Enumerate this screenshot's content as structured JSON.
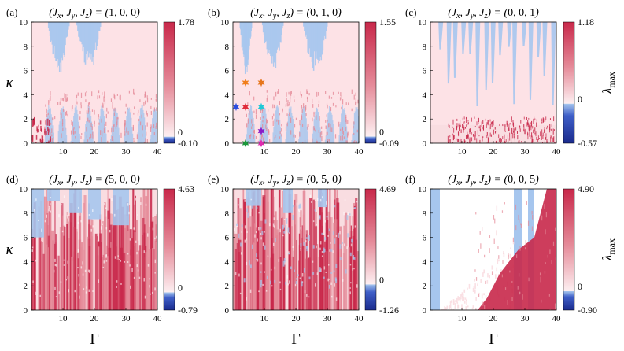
{
  "colors": {
    "chaotic": "#c8284a",
    "chaotic_mid": "#e58b99",
    "chaotic_light": "#f9dde1",
    "stable_blue": "#a6c6ee",
    "deep_blue": "#1a2a8c",
    "background_pink": "#fde2e6"
  },
  "figure": {
    "x_axis_label": "Γ",
    "y_axis_label": "κ",
    "colorbar_label_main": "λ",
    "colorbar_label_sub": "max"
  },
  "chart_data": [
    {
      "type": "heatmap",
      "panel": "(a)",
      "title": "(J_x, J_y, J_z) = (1, 0, 0)",
      "title_parts": {
        "pre": "(J",
        "x": "x",
        "sep1": ", J",
        "y": "y",
        "sep2": ", J",
        "z": "z",
        "mid": ") = (",
        "values": "1, 0, 0",
        "post": ")"
      },
      "xlabel": "Γ",
      "ylabel": "κ",
      "xlim": [
        0,
        40
      ],
      "ylim": [
        0,
        10
      ],
      "xticks": [
        10,
        20,
        30,
        40
      ],
      "yticks": [
        0,
        2,
        4,
        6,
        8,
        10
      ],
      "colorbar": {
        "label": "λmax",
        "min": -0.1,
        "max": 1.78,
        "zero": 0,
        "tick_labels": [
          "1.78",
          "0",
          "-0.10"
        ]
      }
    },
    {
      "type": "heatmap",
      "panel": "(b)",
      "title": "(J_x, J_y, J_z) = (0, 1, 0)",
      "title_parts": {
        "pre": "(J",
        "x": "x",
        "sep1": ", J",
        "y": "y",
        "sep2": ", J",
        "z": "z",
        "mid": ") = (",
        "values": "0, 1, 0",
        "post": ")"
      },
      "xlabel": "Γ",
      "ylabel": "κ",
      "xlim": [
        0,
        40
      ],
      "ylim": [
        0,
        10
      ],
      "xticks": [
        10,
        20,
        30,
        40
      ],
      "yticks": [
        0,
        2,
        4,
        6,
        8,
        10
      ],
      "colorbar": {
        "label": "λmax",
        "min": -0.09,
        "max": 1.55,
        "zero": 0,
        "tick_labels": [
          "1.55",
          "0",
          "-0.09"
        ]
      },
      "markers": [
        {
          "x": 1,
          "y": 3,
          "color": "#2b4ee0"
        },
        {
          "x": 4,
          "y": 5,
          "color": "#f07d1a"
        },
        {
          "x": 9,
          "y": 5,
          "color": "#e6751a"
        },
        {
          "x": 4,
          "y": 3,
          "color": "#e02b3a"
        },
        {
          "x": 9,
          "y": 3,
          "color": "#1ec8d6"
        },
        {
          "x": 9,
          "y": 1,
          "color": "#8a1bc8"
        },
        {
          "x": 4,
          "y": 0,
          "color": "#1a9a3a"
        },
        {
          "x": 9,
          "y": 0,
          "color": "#e02ab0"
        }
      ]
    },
    {
      "type": "heatmap",
      "panel": "(c)",
      "title": "(J_x, J_y, J_z) = (0, 0, 1)",
      "title_parts": {
        "pre": "(J",
        "x": "x",
        "sep1": ", J",
        "y": "y",
        "sep2": ", J",
        "z": "z",
        "mid": ") = (",
        "values": "0, 0, 1",
        "post": ")"
      },
      "xlabel": "Γ",
      "ylabel": "κ",
      "xlim": [
        0,
        40
      ],
      "ylim": [
        0,
        10
      ],
      "xticks": [
        10,
        20,
        30,
        40
      ],
      "yticks": [
        0,
        2,
        4,
        6,
        8,
        10
      ],
      "colorbar": {
        "label": "λmax",
        "min": -0.57,
        "max": 1.18,
        "zero": 0,
        "tick_labels": [
          "1.18",
          "0",
          "-0.57"
        ]
      }
    },
    {
      "type": "heatmap",
      "panel": "(d)",
      "title": "(J_x, J_y, J_z) = (5, 0, 0)",
      "title_parts": {
        "pre": "(J",
        "x": "x",
        "sep1": ", J",
        "y": "y",
        "sep2": ", J",
        "z": "z",
        "mid": ") = (",
        "values": "5, 0, 0",
        "post": ")"
      },
      "xlabel": "Γ",
      "ylabel": "κ",
      "xlim": [
        0,
        40
      ],
      "ylim": [
        0,
        10
      ],
      "xticks": [
        10,
        20,
        30,
        40
      ],
      "yticks": [
        0,
        2,
        4,
        6,
        8,
        10
      ],
      "colorbar": {
        "label": "λmax",
        "min": -0.79,
        "max": 4.63,
        "zero": 0,
        "tick_labels": [
          "4.63",
          "0",
          "-0.79"
        ]
      }
    },
    {
      "type": "heatmap",
      "panel": "(e)",
      "title": "(J_x, J_y, J_z) = (0, 5, 0)",
      "title_parts": {
        "pre": "(J",
        "x": "x",
        "sep1": ", J",
        "y": "y",
        "sep2": ", J",
        "z": "z",
        "mid": ") = (",
        "values": "0, 5, 0",
        "post": ")"
      },
      "xlabel": "Γ",
      "ylabel": "κ",
      "xlim": [
        0,
        40
      ],
      "ylim": [
        0,
        10
      ],
      "xticks": [
        10,
        20,
        30,
        40
      ],
      "yticks": [
        0,
        2,
        4,
        6,
        8,
        10
      ],
      "colorbar": {
        "label": "λmax",
        "min": -1.26,
        "max": 4.69,
        "zero": 0,
        "tick_labels": [
          "4.69",
          "0",
          "-1.26"
        ]
      }
    },
    {
      "type": "heatmap",
      "panel": "(f)",
      "title": "(J_x, J_y, J_z) = (0, 0, 5)",
      "title_parts": {
        "pre": "(J",
        "x": "x",
        "sep1": ", J",
        "y": "y",
        "sep2": ", J",
        "z": "z",
        "mid": ") = (",
        "values": "0, 0, 5",
        "post": ")"
      },
      "xlabel": "Γ",
      "ylabel": "κ",
      "xlim": [
        0,
        40
      ],
      "ylim": [
        0,
        10
      ],
      "xticks": [
        10,
        20,
        30,
        40
      ],
      "yticks": [
        0,
        2,
        4,
        6,
        8,
        10
      ],
      "colorbar": {
        "label": "λmax",
        "min": -0.9,
        "max": 4.9,
        "zero": 0,
        "tick_labels": [
          "4.90",
          "0",
          "-0.90"
        ]
      }
    }
  ]
}
